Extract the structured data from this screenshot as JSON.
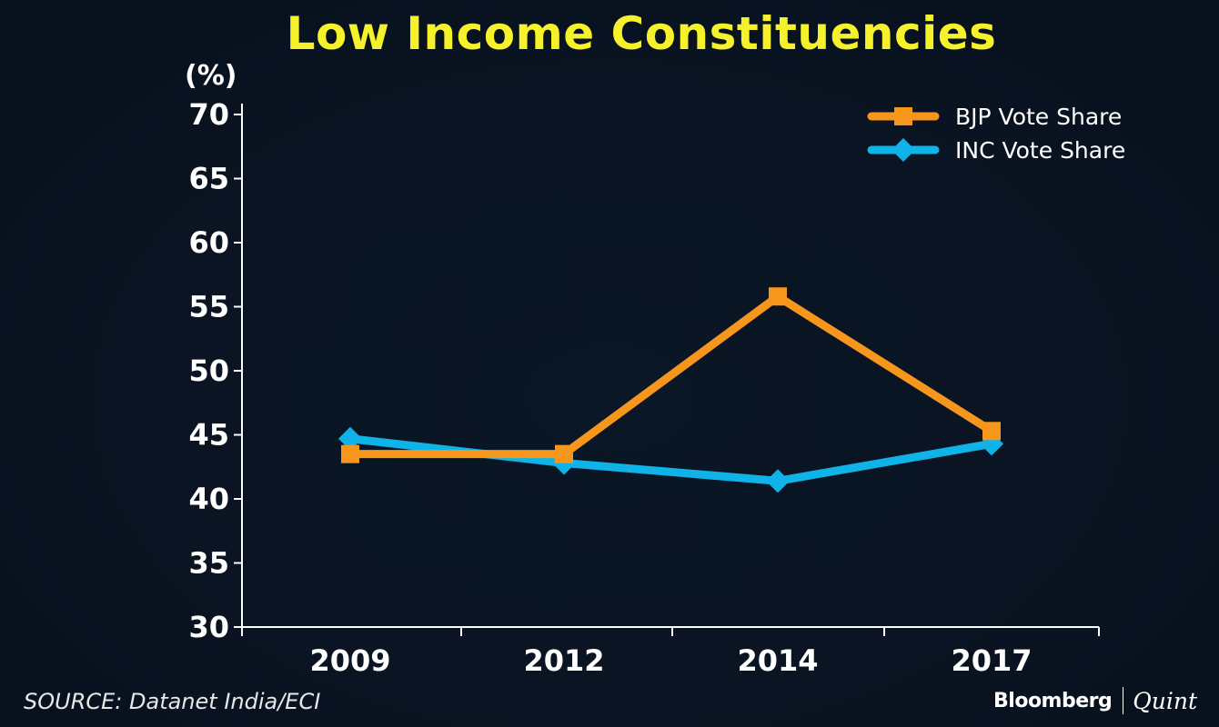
{
  "header": {
    "title": "Low Income Constituencies",
    "y_unit": "(%)"
  },
  "footer": {
    "source": "SOURCE: Datanet India/ECI",
    "brand_primary": "Bloomberg",
    "brand_secondary": "Quint"
  },
  "colors": {
    "title": "#f5f12a",
    "background": "#0a1422",
    "axis": "#ffffff",
    "bjp": "#f7961d",
    "inc": "#0fb3e8"
  },
  "chart_data": {
    "type": "line",
    "title": "Low Income Constituencies",
    "ylabel": "(%)",
    "xlabel": "",
    "categories": [
      "2009",
      "2012",
      "2014",
      "2017"
    ],
    "ylim": [
      30,
      70
    ],
    "yticks": [
      30,
      35,
      40,
      45,
      50,
      55,
      60,
      65,
      70
    ],
    "grid": false,
    "legend_position": "top-right",
    "series": [
      {
        "name": "BJP Vote Share",
        "marker": "square",
        "color": "#f7961d",
        "values": [
          43.5,
          43.5,
          55.8,
          45.3
        ]
      },
      {
        "name": "INC Vote Share",
        "marker": "diamond",
        "color": "#0fb3e8",
        "values": [
          44.7,
          42.8,
          41.4,
          44.3
        ]
      }
    ]
  }
}
